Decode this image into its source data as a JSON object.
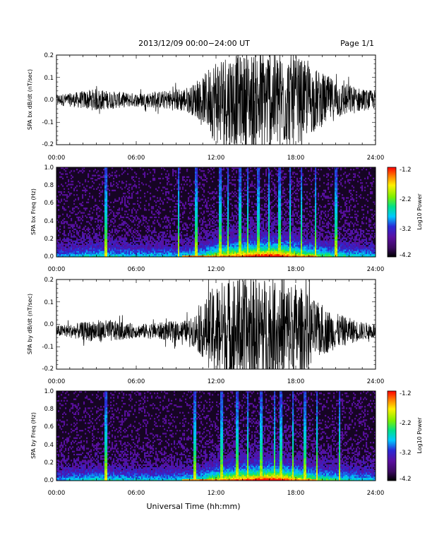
{
  "header": {
    "title": "2013/12/09  00:00−24:00 UT",
    "page": "Page 1/1"
  },
  "footer": {
    "xlabel": "Universal Time (hh:mm)"
  },
  "colors": {
    "trace": "#000000",
    "colormap": [
      "#000000",
      "#3a0a5e",
      "#5a0fa0",
      "#2a2ad6",
      "#00c8ff",
      "#00e08a",
      "#7cf000",
      "#fff000",
      "#ff8000",
      "#ff0000"
    ]
  },
  "chart_data": [
    {
      "type": "line",
      "name": "panel-bx-dbdt",
      "ylabel": "SPA bx dB/dt (nT/sec)",
      "xlim": [
        0,
        24
      ],
      "ylim": [
        -0.2,
        0.2
      ],
      "xticks": [
        "00:00",
        "06:00",
        "12:00",
        "18:00",
        "24:00"
      ],
      "yticks": [
        "-0.2",
        "-0.1",
        "0.0",
        "0.1",
        "0.2"
      ],
      "center": 0.0,
      "envelope_hours": [
        0,
        1,
        2,
        3,
        4,
        5,
        6,
        7,
        8,
        9,
        10,
        11,
        12,
        13,
        14,
        15,
        16,
        17,
        18,
        19,
        20,
        21,
        22,
        23,
        24
      ],
      "envelope_amp": [
        0.025,
        0.03,
        0.04,
        0.05,
        0.04,
        0.035,
        0.03,
        0.035,
        0.04,
        0.05,
        0.06,
        0.1,
        0.2,
        0.22,
        0.2,
        0.22,
        0.24,
        0.22,
        0.2,
        0.16,
        0.12,
        0.09,
        0.07,
        0.05,
        0.04
      ]
    },
    {
      "type": "heatmap",
      "name": "panel-bx-spectrogram",
      "ylabel": "SPA bx Freq (Hz)",
      "xlim": [
        0,
        24
      ],
      "ylim": [
        0.0,
        1.0
      ],
      "xticks": [
        "00:00",
        "06:00",
        "12:00",
        "18:00",
        "24:00"
      ],
      "yticks": [
        "0.0",
        "0.2",
        "0.4",
        "0.6",
        "0.8",
        "1.0"
      ],
      "colorbar_label": "Log10 Power",
      "colorbar_ticks": [
        "-1.2",
        "-2.2",
        "-3.2",
        "-4.2"
      ],
      "colorbar_range": [
        -4.2,
        -1.2
      ]
    },
    {
      "type": "line",
      "name": "panel-by-dbdt",
      "ylabel": "SPA by dB/dt (nT/sec)",
      "xlim": [
        0,
        24
      ],
      "ylim": [
        -0.2,
        0.2
      ],
      "xticks": [
        "00:00",
        "06:00",
        "12:00",
        "18:00",
        "24:00"
      ],
      "yticks": [
        "-0.2",
        "-0.1",
        "0.0",
        "0.1",
        "0.2"
      ],
      "center": -0.03,
      "envelope_hours": [
        0,
        1,
        2,
        3,
        4,
        5,
        6,
        7,
        8,
        9,
        10,
        11,
        12,
        13,
        14,
        15,
        16,
        17,
        18,
        19,
        20,
        21,
        22,
        23,
        24
      ],
      "envelope_amp": [
        0.025,
        0.03,
        0.04,
        0.05,
        0.05,
        0.04,
        0.03,
        0.035,
        0.04,
        0.045,
        0.05,
        0.12,
        0.22,
        0.24,
        0.24,
        0.24,
        0.24,
        0.24,
        0.22,
        0.16,
        0.11,
        0.08,
        0.06,
        0.04,
        0.035
      ]
    },
    {
      "type": "heatmap",
      "name": "panel-by-spectrogram",
      "ylabel": "SPA by Freq (Hz)",
      "xlim": [
        0,
        24
      ],
      "ylim": [
        0.0,
        1.0
      ],
      "xticks": [
        "00:00",
        "06:00",
        "12:00",
        "18:00",
        "24:00"
      ],
      "yticks": [
        "0.0",
        "0.2",
        "0.4",
        "0.6",
        "0.8",
        "1.0"
      ],
      "colorbar_label": "Log10 Power",
      "colorbar_ticks": [
        "-1.2",
        "-2.2",
        "-3.2",
        "-4.2"
      ],
      "colorbar_range": [
        -4.2,
        -1.2
      ]
    }
  ]
}
